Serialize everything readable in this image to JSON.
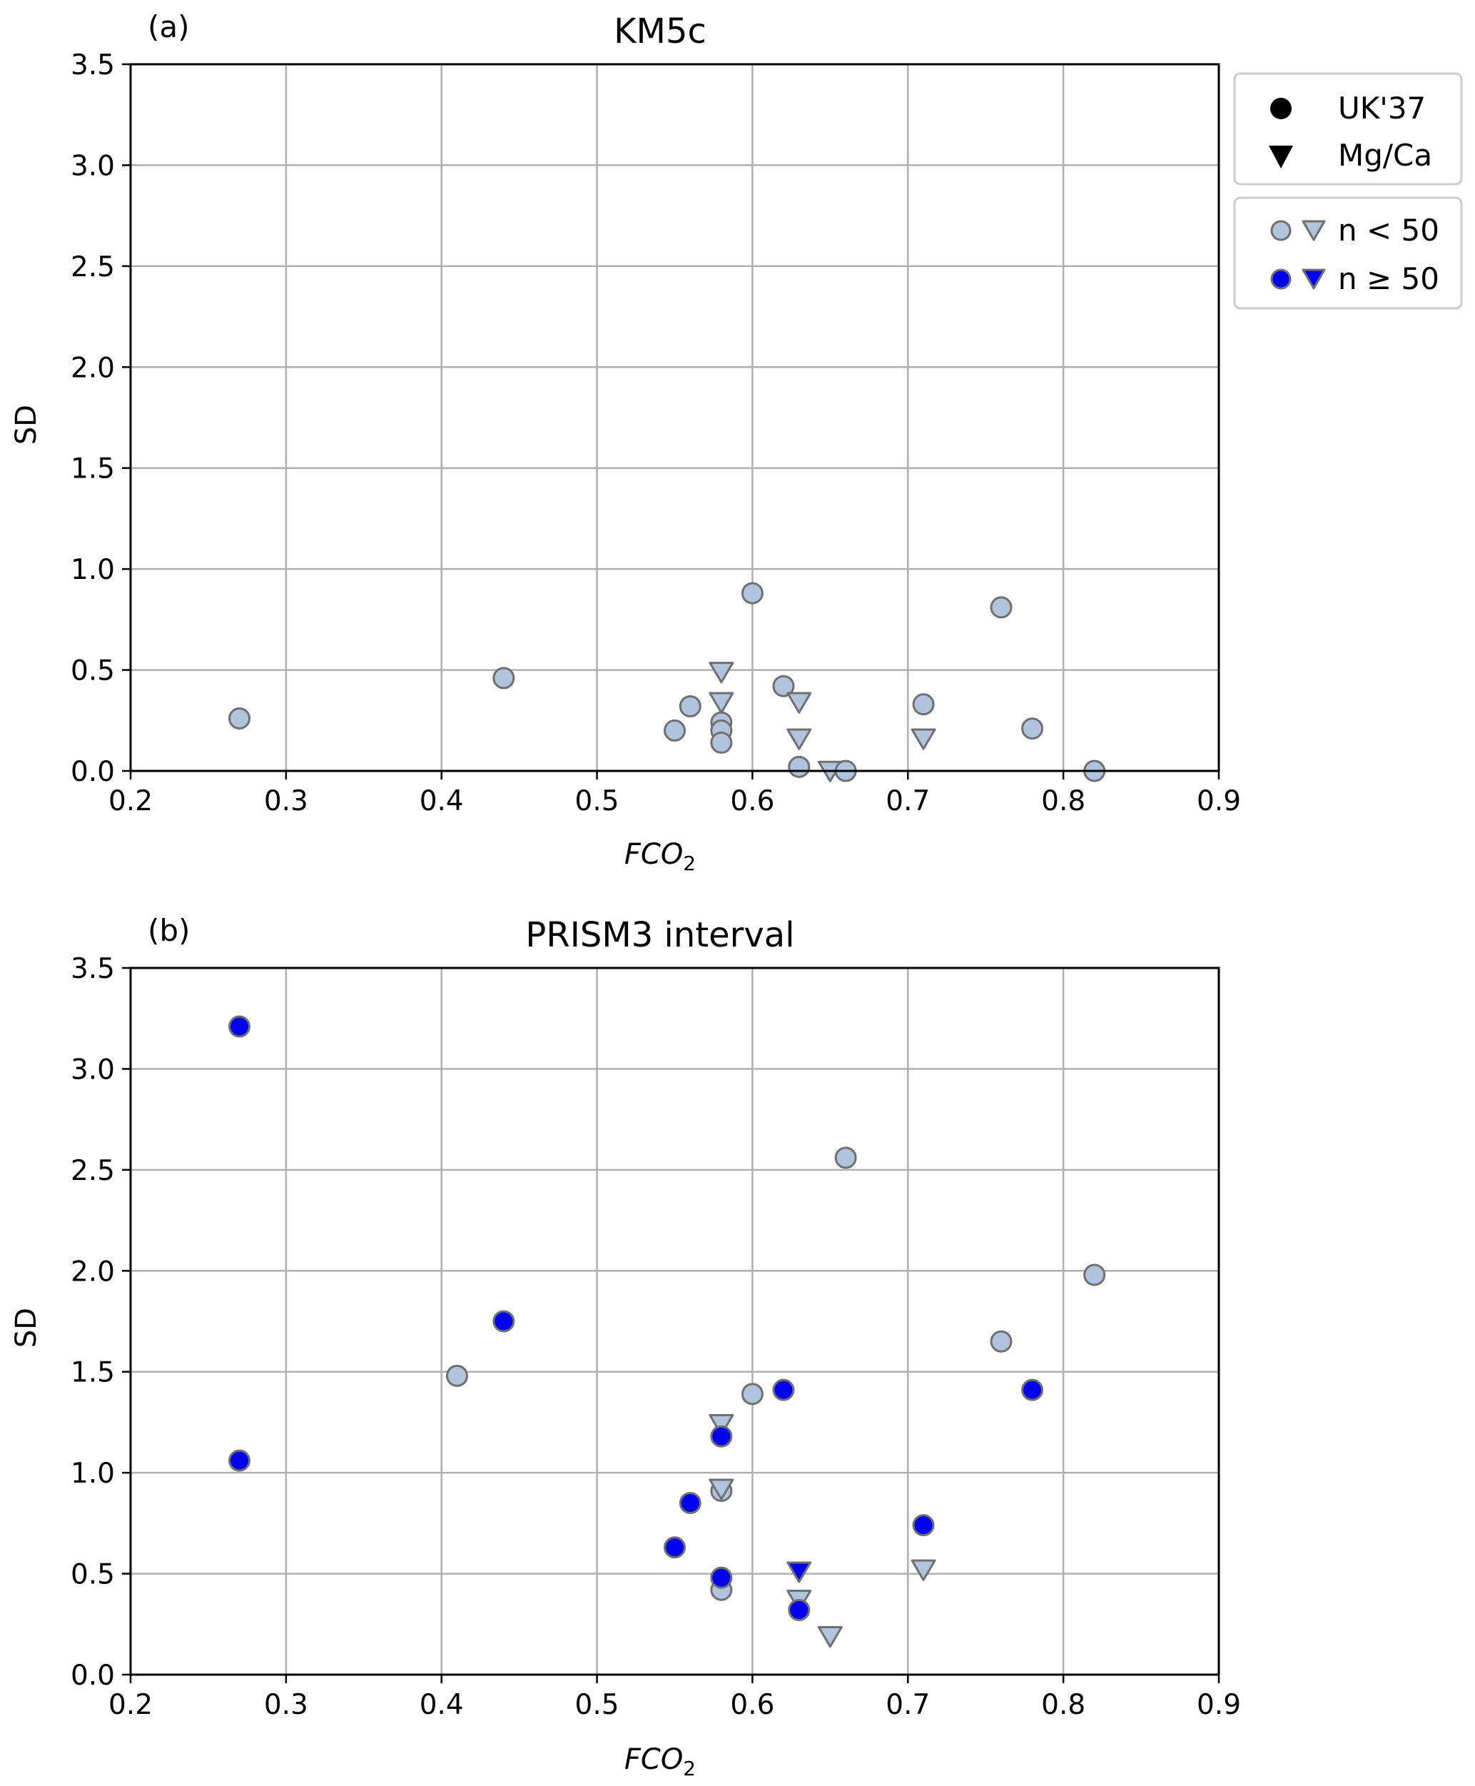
{
  "chart_data": [
    {
      "type": "scatter",
      "panel_label": "(a)",
      "title": "KM5c",
      "xlabel": "FCO",
      "xlabel_sub": "2",
      "ylabel": "SD",
      "xlim": [
        0.2,
        0.9
      ],
      "ylim": [
        0.0,
        3.5
      ],
      "xticks": [
        "0.2",
        "0.3",
        "0.4",
        "0.5",
        "0.6",
        "0.7",
        "0.8",
        "0.9"
      ],
      "yticks": [
        "0.0",
        "0.5",
        "1.0",
        "1.5",
        "2.0",
        "2.5",
        "3.0",
        "3.5"
      ],
      "grid": true,
      "points": [
        {
          "x": 0.27,
          "y": 0.26,
          "marker": "circle",
          "n_ge_50": false
        },
        {
          "x": 0.44,
          "y": 0.46,
          "marker": "circle",
          "n_ge_50": false
        },
        {
          "x": 0.55,
          "y": 0.2,
          "marker": "circle",
          "n_ge_50": false
        },
        {
          "x": 0.56,
          "y": 0.32,
          "marker": "circle",
          "n_ge_50": false
        },
        {
          "x": 0.58,
          "y": 0.24,
          "marker": "circle",
          "n_ge_50": false
        },
        {
          "x": 0.58,
          "y": 0.2,
          "marker": "circle",
          "n_ge_50": false
        },
        {
          "x": 0.58,
          "y": 0.14,
          "marker": "circle",
          "n_ge_50": false
        },
        {
          "x": 0.58,
          "y": 0.49,
          "marker": "triangle",
          "n_ge_50": false
        },
        {
          "x": 0.58,
          "y": 0.34,
          "marker": "triangle",
          "n_ge_50": false
        },
        {
          "x": 0.6,
          "y": 0.88,
          "marker": "circle",
          "n_ge_50": false
        },
        {
          "x": 0.62,
          "y": 0.42,
          "marker": "circle",
          "n_ge_50": false
        },
        {
          "x": 0.63,
          "y": 0.34,
          "marker": "triangle",
          "n_ge_50": false
        },
        {
          "x": 0.63,
          "y": 0.16,
          "marker": "triangle",
          "n_ge_50": false
        },
        {
          "x": 0.63,
          "y": 0.02,
          "marker": "circle",
          "n_ge_50": false
        },
        {
          "x": 0.65,
          "y": 0.0,
          "marker": "triangle",
          "n_ge_50": false
        },
        {
          "x": 0.66,
          "y": 0.0,
          "marker": "circle",
          "n_ge_50": false
        },
        {
          "x": 0.71,
          "y": 0.33,
          "marker": "circle",
          "n_ge_50": false
        },
        {
          "x": 0.71,
          "y": 0.16,
          "marker": "triangle",
          "n_ge_50": false
        },
        {
          "x": 0.76,
          "y": 0.81,
          "marker": "circle",
          "n_ge_50": false
        },
        {
          "x": 0.78,
          "y": 0.21,
          "marker": "circle",
          "n_ge_50": false
        },
        {
          "x": 0.82,
          "y": 0.0,
          "marker": "circle",
          "n_ge_50": false
        }
      ]
    },
    {
      "type": "scatter",
      "panel_label": "(b)",
      "title": "PRISM3 interval",
      "xlabel": "FCO",
      "xlabel_sub": "2",
      "ylabel": "SD",
      "xlim": [
        0.2,
        0.9
      ],
      "ylim": [
        0.0,
        3.5
      ],
      "xticks": [
        "0.2",
        "0.3",
        "0.4",
        "0.5",
        "0.6",
        "0.7",
        "0.8",
        "0.9"
      ],
      "yticks": [
        "0.0",
        "0.5",
        "1.0",
        "1.5",
        "2.0",
        "2.5",
        "3.0",
        "3.5"
      ],
      "grid": true,
      "points": [
        {
          "x": 0.27,
          "y": 3.21,
          "marker": "circle",
          "n_ge_50": true
        },
        {
          "x": 0.27,
          "y": 1.06,
          "marker": "circle",
          "n_ge_50": true
        },
        {
          "x": 0.41,
          "y": 1.48,
          "marker": "circle",
          "n_ge_50": false
        },
        {
          "x": 0.44,
          "y": 1.75,
          "marker": "circle",
          "n_ge_50": true
        },
        {
          "x": 0.55,
          "y": 0.63,
          "marker": "circle",
          "n_ge_50": true
        },
        {
          "x": 0.56,
          "y": 0.85,
          "marker": "circle",
          "n_ge_50": true
        },
        {
          "x": 0.58,
          "y": 1.24,
          "marker": "triangle",
          "n_ge_50": false
        },
        {
          "x": 0.58,
          "y": 1.18,
          "marker": "circle",
          "n_ge_50": true
        },
        {
          "x": 0.58,
          "y": 0.91,
          "marker": "circle",
          "n_ge_50": false
        },
        {
          "x": 0.58,
          "y": 0.92,
          "marker": "triangle",
          "n_ge_50": false
        },
        {
          "x": 0.58,
          "y": 0.42,
          "marker": "circle",
          "n_ge_50": false
        },
        {
          "x": 0.58,
          "y": 0.48,
          "marker": "circle",
          "n_ge_50": true
        },
        {
          "x": 0.6,
          "y": 1.39,
          "marker": "circle",
          "n_ge_50": false
        },
        {
          "x": 0.62,
          "y": 1.41,
          "marker": "circle",
          "n_ge_50": true
        },
        {
          "x": 0.63,
          "y": 0.51,
          "marker": "triangle",
          "n_ge_50": true
        },
        {
          "x": 0.63,
          "y": 0.37,
          "marker": "triangle",
          "n_ge_50": false
        },
        {
          "x": 0.63,
          "y": 0.32,
          "marker": "circle",
          "n_ge_50": true
        },
        {
          "x": 0.65,
          "y": 0.19,
          "marker": "triangle",
          "n_ge_50": false
        },
        {
          "x": 0.66,
          "y": 2.56,
          "marker": "circle",
          "n_ge_50": false
        },
        {
          "x": 0.71,
          "y": 0.74,
          "marker": "circle",
          "n_ge_50": true
        },
        {
          "x": 0.71,
          "y": 0.52,
          "marker": "triangle",
          "n_ge_50": false
        },
        {
          "x": 0.76,
          "y": 1.65,
          "marker": "circle",
          "n_ge_50": false
        },
        {
          "x": 0.78,
          "y": 1.41,
          "marker": "circle",
          "n_ge_50": true
        },
        {
          "x": 0.82,
          "y": 1.98,
          "marker": "circle",
          "n_ge_50": false
        }
      ]
    }
  ],
  "legend": {
    "placement": "right-of-top-panel",
    "marker_entries": [
      {
        "label": "UK'37",
        "marker": "circle"
      },
      {
        "label": "Mg/Ca",
        "marker": "triangle"
      }
    ],
    "sample_entries": [
      {
        "label": "n < 50",
        "n_ge_50": false
      },
      {
        "label": "n ≥ 50",
        "n_ge_50": true
      }
    ]
  },
  "colors": {
    "n_lt_50_fill": "#b0c4de",
    "n_ge_50_fill": "#0000ee",
    "marker_edge": "#707070",
    "grid": "#b0b0b0",
    "axes": "#000000",
    "legend_border": "#cccccc"
  }
}
